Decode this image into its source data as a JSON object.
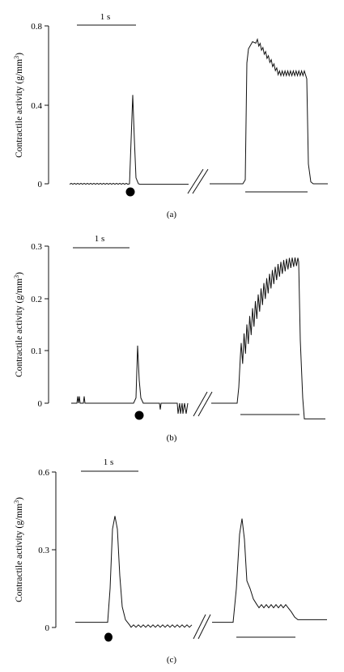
{
  "chart_data": [
    {
      "panel_label": "(a)",
      "type": "line",
      "ylabel": "Contractile activity (g/mm",
      "ylabel_sup": "3",
      "ylabel_tail": ")",
      "yticks": [
        "0",
        "0.4",
        "0.8"
      ],
      "ylim": [
        0,
        0.8
      ],
      "scale_bar_label": "1 s",
      "twitch_peak": 0.45,
      "tetanus_peak": 0.72,
      "tetanus_plateau": 0.56,
      "tetanus_ripple_count": 17
    },
    {
      "panel_label": "(b)",
      "type": "line",
      "ylabel": "Contractile activity (g/mm",
      "ylabel_sup": "3",
      "ylabel_tail": ")",
      "yticks": [
        "0",
        "0.1",
        "0.2",
        "0.3"
      ],
      "ylim": [
        0,
        0.3
      ],
      "scale_bar_label": "1 s",
      "twitch_peak": 0.11,
      "tetanus_start": 0.09,
      "tetanus_end": 0.27,
      "tetanus_ripple_count": 20,
      "post_baseline": -0.03
    },
    {
      "panel_label": "(c)",
      "type": "line",
      "ylabel": "Contractile activity (g/mm",
      "ylabel_sup": "3",
      "ylabel_tail": ")",
      "yticks": [
        "0",
        "0.3",
        "0.6"
      ],
      "ylim": [
        0,
        0.6
      ],
      "scale_bar_label": "1 s",
      "pre_baseline": 0.02,
      "twitch_peak": 0.43,
      "second_peak": 0.42,
      "plateau": 0.08,
      "post_baseline": 0.03
    }
  ]
}
